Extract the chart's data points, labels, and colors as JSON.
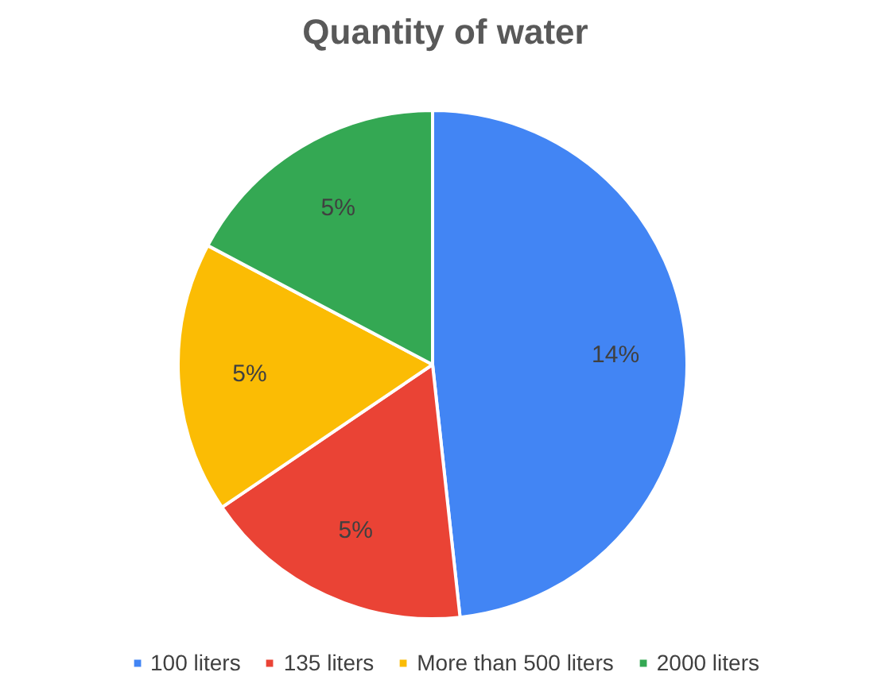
{
  "chart_data": {
    "type": "pie",
    "title": "Quantity of water",
    "categories": [
      "100 liters",
      "135 liters",
      "More than 500 liters",
      "2000 liters"
    ],
    "values": [
      14,
      5,
      5,
      5
    ],
    "colors": [
      "#4285f4",
      "#ea4335",
      "#fbbc04",
      "#34a853"
    ],
    "value_labels": [
      "14%",
      "5%",
      "5%",
      "5%"
    ],
    "legend": "bottom"
  }
}
